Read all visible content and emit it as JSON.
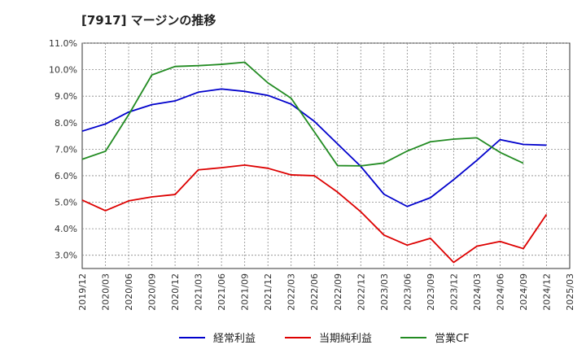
{
  "title": "[7917]  マージンの推移",
  "chart_data": {
    "type": "line",
    "title": "[7917]  マージンの推移",
    "xlabel": "",
    "ylabel": "",
    "ylim": [
      2.5,
      11.0
    ],
    "y_ticks": [
      "3.0%",
      "4.0%",
      "5.0%",
      "6.0%",
      "7.0%",
      "8.0%",
      "9.0%",
      "10.0%",
      "11.0%"
    ],
    "grid": true,
    "legend_position": "bottom",
    "x": [
      "2019/12",
      "2020/03",
      "2020/06",
      "2020/09",
      "2020/12",
      "2021/03",
      "2021/06",
      "2021/09",
      "2021/12",
      "2022/03",
      "2022/06",
      "2022/09",
      "2022/12",
      "2023/03",
      "2023/06",
      "2023/09",
      "2023/12",
      "2024/03",
      "2024/06",
      "2024/09",
      "2024/12",
      "2025/03"
    ],
    "series": [
      {
        "name": "経常利益",
        "color": "#0000cc",
        "values": [
          7.68,
          7.95,
          8.4,
          8.68,
          8.82,
          9.15,
          9.27,
          9.18,
          9.03,
          8.7,
          8.05,
          7.2,
          6.35,
          5.3,
          4.84,
          5.17,
          5.85,
          6.58,
          7.36,
          7.18,
          7.15,
          null
        ]
      },
      {
        "name": "当期純利益",
        "color": "#dd0000",
        "values": [
          5.08,
          4.68,
          5.05,
          5.2,
          5.29,
          6.22,
          6.3,
          6.4,
          6.28,
          6.03,
          6.0,
          5.38,
          4.64,
          3.76,
          3.38,
          3.64,
          2.73,
          3.34,
          3.52,
          3.25,
          4.54,
          null
        ]
      },
      {
        "name": "営業CF",
        "color": "#228b22",
        "values": [
          6.62,
          6.92,
          8.3,
          9.8,
          10.12,
          10.15,
          10.2,
          10.28,
          9.5,
          8.92,
          7.65,
          6.38,
          6.37,
          6.48,
          6.93,
          7.28,
          7.38,
          7.43,
          6.88,
          6.47,
          null,
          null
        ]
      }
    ]
  }
}
